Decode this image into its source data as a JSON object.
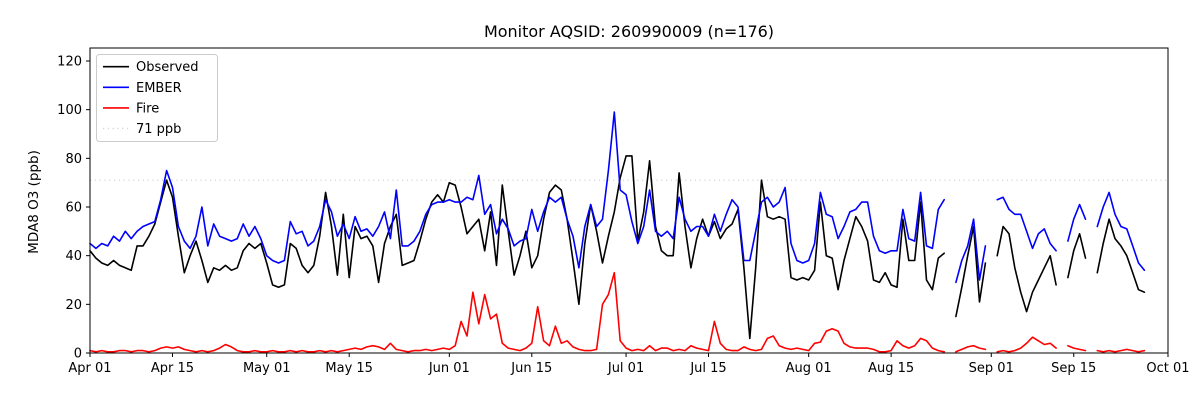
{
  "figure": {
    "title": "Monitor AQSID: 260990009 (n=176)",
    "y_axis_label": "MDA8 O3 (ppb)"
  },
  "chart_data": {
    "type": "line",
    "title": "Monitor AQSID: 260990009 (n=176)",
    "xlabel": "",
    "ylabel": "MDA8 O3 (ppb)",
    "ylim": [
      0,
      125
    ],
    "y_ticks": [
      0,
      20,
      40,
      60,
      80,
      100,
      120
    ],
    "x_axis": {
      "unit": "day index from Apr 01",
      "range_days": [
        0,
        183
      ],
      "ticks": [
        {
          "day": 0,
          "label": "Apr 01"
        },
        {
          "day": 14,
          "label": "Apr 15"
        },
        {
          "day": 30,
          "label": "May 01"
        },
        {
          "day": 44,
          "label": "May 15"
        },
        {
          "day": 61,
          "label": "Jun 01"
        },
        {
          "day": 75,
          "label": "Jun 15"
        },
        {
          "day": 91,
          "label": "Jul 01"
        },
        {
          "day": 105,
          "label": "Jul 15"
        },
        {
          "day": 122,
          "label": "Aug 01"
        },
        {
          "day": 136,
          "label": "Aug 15"
        },
        {
          "day": 153,
          "label": "Sep 01"
        },
        {
          "day": 167,
          "label": "Sep 15"
        },
        {
          "day": 183,
          "label": "Oct 01"
        }
      ]
    },
    "reference_line": {
      "value": 71,
      "label": "71 ppb",
      "style": "dotted",
      "color": "#d4d4d4"
    },
    "legend": {
      "position": "upper-left",
      "entries": [
        "Observed",
        "EMBER",
        "Fire",
        "71 ppb"
      ]
    },
    "grid": false,
    "n_observations": 176,
    "series": [
      {
        "name": "Observed",
        "color": "#000000",
        "values": [
          42,
          39,
          37,
          36,
          38,
          36,
          35,
          34,
          44,
          44,
          48,
          53,
          62,
          71,
          64,
          48,
          33,
          40,
          46,
          38,
          29,
          35,
          34,
          36,
          34,
          35,
          42,
          45,
          43,
          45,
          37,
          28,
          27,
          28,
          45,
          43,
          36,
          33,
          36,
          48,
          66,
          52,
          32,
          57,
          31,
          52,
          47,
          48,
          44,
          29,
          45,
          52,
          57,
          36,
          37,
          38,
          46,
          55,
          62,
          65,
          62,
          70,
          69,
          60,
          49,
          52,
          55,
          42,
          58,
          36,
          69,
          50,
          32,
          40,
          50,
          35,
          40,
          55,
          66,
          69,
          67,
          55,
          38,
          20,
          45,
          61,
          50,
          37,
          48,
          58,
          72,
          81,
          81,
          46,
          58,
          79,
          52,
          42,
          40,
          40,
          74,
          52,
          35,
          47,
          55,
          48,
          54,
          47,
          51,
          53,
          59,
          35,
          6,
          35,
          71,
          56,
          55,
          56,
          55,
          31,
          30,
          31,
          30,
          34,
          62,
          40,
          39,
          26,
          38,
          47,
          56,
          52,
          46,
          30,
          29,
          33,
          28,
          27,
          55,
          38,
          38,
          62,
          30,
          26,
          39,
          41,
          null,
          15,
          27,
          40,
          52,
          21,
          37,
          null,
          40,
          52,
          49,
          35,
          25,
          17,
          25,
          30,
          35,
          40,
          28,
          null,
          31,
          42,
          49,
          39,
          null,
          33,
          45,
          55,
          47,
          44,
          40,
          33,
          26,
          25
        ]
      },
      {
        "name": "EMBER",
        "color": "#0000ff",
        "values": [
          45,
          43,
          45,
          44,
          48,
          46,
          50,
          47,
          50,
          52,
          53,
          54,
          63,
          75,
          68,
          52,
          46,
          43,
          48,
          60,
          44,
          53,
          48,
          47,
          46,
          47,
          53,
          48,
          52,
          47,
          40,
          38,
          37,
          38,
          54,
          49,
          50,
          44,
          46,
          52,
          63,
          58,
          48,
          53,
          47,
          56,
          50,
          51,
          48,
          52,
          58,
          47,
          67,
          44,
          44,
          46,
          50,
          57,
          61,
          62,
          62,
          63,
          62,
          62,
          64,
          63,
          73,
          57,
          61,
          49,
          55,
          51,
          44,
          46,
          47,
          59,
          50,
          58,
          64,
          62,
          64,
          55,
          48,
          35,
          52,
          61,
          52,
          55,
          75,
          99,
          67,
          65,
          54,
          45,
          52,
          67,
          50,
          48,
          50,
          47,
          64,
          55,
          50,
          52,
          52,
          48,
          57,
          50,
          57,
          63,
          60,
          38,
          38,
          50,
          62,
          64,
          60,
          62,
          68,
          45,
          38,
          37,
          38,
          45,
          66,
          57,
          56,
          47,
          52,
          58,
          59,
          62,
          62,
          48,
          42,
          41,
          42,
          42,
          59,
          47,
          46,
          66,
          44,
          43,
          59,
          63,
          null,
          29,
          38,
          44,
          55,
          30,
          44,
          null,
          63,
          64,
          59,
          57,
          57,
          50,
          43,
          49,
          51,
          45,
          42,
          null,
          46,
          55,
          61,
          55,
          null,
          52,
          60,
          66,
          57,
          52,
          51,
          44,
          37,
          34
        ]
      },
      {
        "name": "Fire",
        "color": "#ff0000",
        "values": [
          1,
          0.5,
          1,
          0.5,
          0.5,
          1,
          1,
          0.5,
          1,
          1,
          0.5,
          1,
          2,
          2.5,
          2,
          2.5,
          1.5,
          1,
          0.5,
          1,
          0.5,
          1,
          2,
          3.5,
          2.5,
          1,
          0.5,
          0.5,
          1,
          0.5,
          0.5,
          1,
          0.5,
          0.5,
          1,
          0.5,
          1,
          0.5,
          0.5,
          1,
          0.5,
          1,
          0.5,
          1,
          1.5,
          2,
          1.5,
          2.5,
          3,
          2.5,
          1.5,
          4,
          1.5,
          1,
          0.5,
          1,
          1,
          1.5,
          1,
          1.5,
          2,
          1.5,
          3,
          13,
          7,
          25,
          12,
          24,
          14,
          16,
          4,
          2,
          1.5,
          1,
          2,
          4,
          19,
          5,
          3,
          11,
          4,
          5,
          2.5,
          1.5,
          1,
          1,
          1.5,
          20,
          24,
          33,
          5,
          2,
          1,
          1.5,
          1,
          3,
          1,
          2,
          2,
          1,
          1.5,
          1,
          3,
          2,
          1.5,
          1,
          13,
          4,
          1.5,
          1,
          1,
          2.5,
          1.5,
          1,
          1.5,
          6,
          7,
          3,
          2,
          1.5,
          2,
          1.5,
          1,
          4,
          4.5,
          9,
          10,
          9,
          4,
          2.5,
          2,
          2,
          2,
          1.5,
          0.5,
          0.5,
          1,
          5,
          3,
          2,
          3,
          6,
          5,
          2,
          1,
          0.5,
          null,
          0.5,
          1.5,
          2.5,
          3,
          2,
          1.5,
          null,
          0.5,
          1,
          0.5,
          1,
          2,
          4,
          6.5,
          5,
          3.5,
          4,
          2,
          null,
          3,
          2,
          1.5,
          1,
          null,
          1,
          0.5,
          1,
          0.5,
          1,
          1.5,
          1,
          0.5,
          1
        ]
      }
    ]
  }
}
